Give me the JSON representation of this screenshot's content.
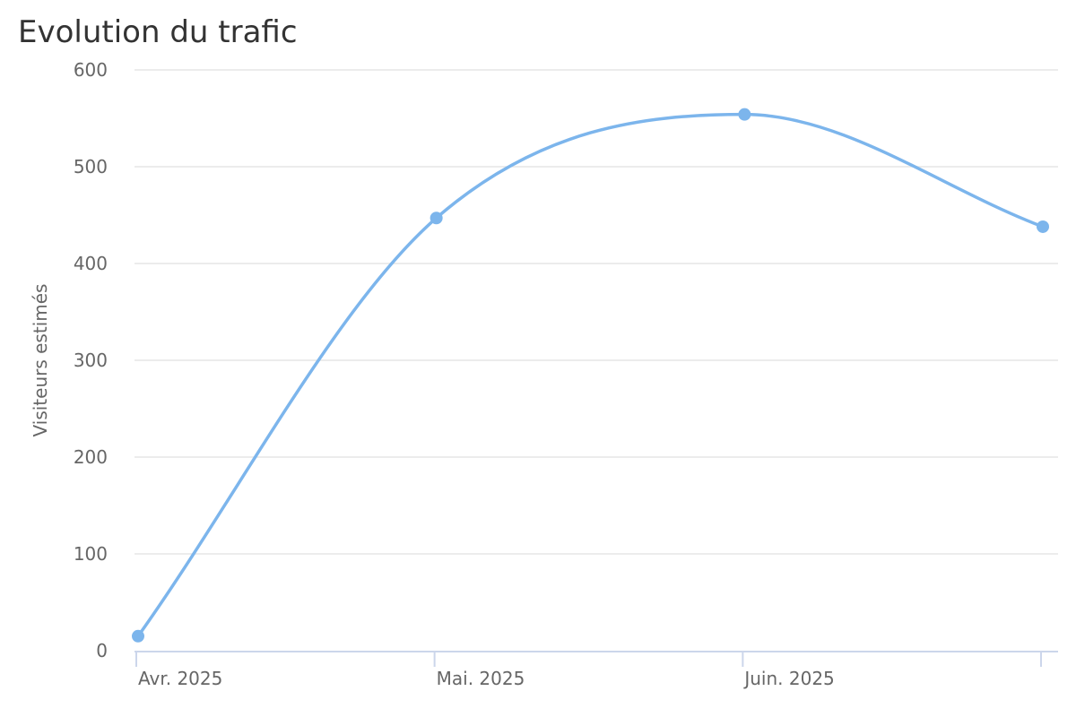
{
  "chart_data": {
    "type": "line",
    "title": "Evolution du trafic",
    "ylabel": "Visiteurs estimés",
    "xlabel": "",
    "x": [
      "2025-04-01",
      "2025-05-01",
      "2025-06-01",
      "2025-07-01"
    ],
    "x_tick_labels": [
      "Avr. 2025",
      "Mai. 2025",
      "Juin. 2025",
      ""
    ],
    "yticks": [
      0,
      100,
      200,
      300,
      400,
      500,
      600
    ],
    "ylim": [
      0,
      600
    ],
    "grid": true,
    "legend": "none",
    "series": [
      {
        "values": [
          15,
          447,
          554,
          438
        ],
        "color": "#7cb5ec"
      }
    ]
  }
}
